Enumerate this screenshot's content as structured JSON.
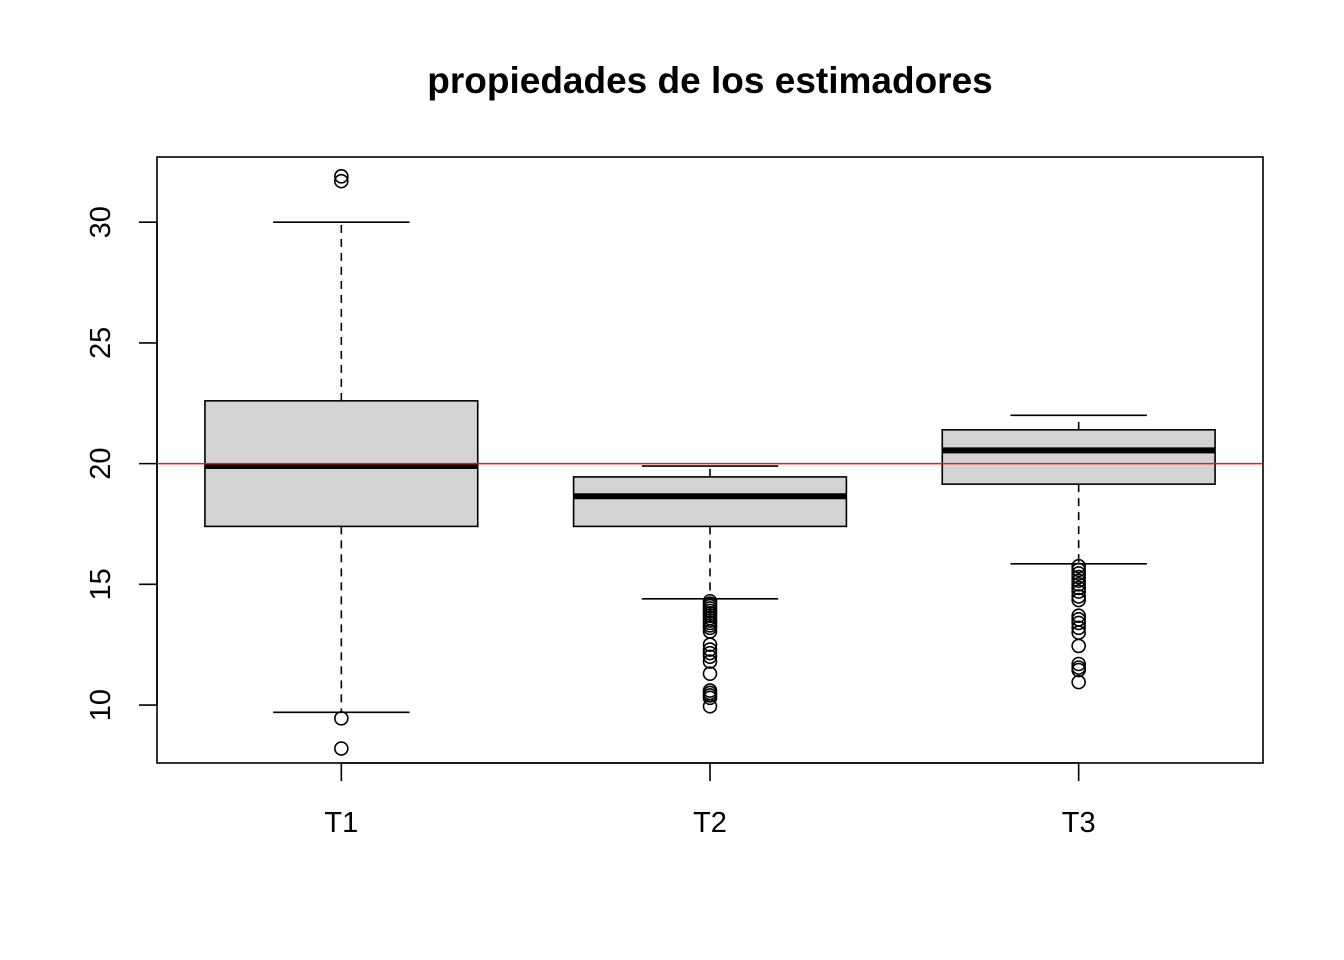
{
  "chart_data": {
    "type": "boxplot",
    "title": "propiedades de los estimadores",
    "xlabel": "",
    "ylabel": "",
    "ylim": [
      7.6,
      32.7
    ],
    "yticks": [
      10,
      15,
      20,
      25,
      30
    ],
    "grid": false,
    "reference_line": {
      "y": 20,
      "color": "#e41a1c"
    },
    "box_fill": "#d3d3d3",
    "categories": [
      "T1",
      "T2",
      "T3"
    ],
    "series": [
      {
        "category": "T1",
        "whisker_low": 9.7,
        "q1": 17.4,
        "median": 19.9,
        "q3": 22.6,
        "whisker_high": 30.0,
        "outliers": [
          31.7,
          31.9,
          9.45,
          8.2
        ]
      },
      {
        "category": "T2",
        "whisker_low": 14.4,
        "q1": 17.4,
        "median": 18.65,
        "q3": 19.45,
        "whisker_high": 19.9,
        "outliers": [
          14.3,
          14.2,
          14.1,
          14.0,
          13.9,
          13.8,
          13.7,
          13.6,
          13.5,
          13.4,
          13.3,
          13.2,
          13.05,
          12.5,
          12.3,
          12.15,
          12.0,
          11.8,
          11.3,
          10.6,
          10.5,
          10.4,
          10.3,
          9.95
        ]
      },
      {
        "category": "T3",
        "whisker_low": 15.85,
        "q1": 19.15,
        "median": 20.55,
        "q3": 21.4,
        "whisker_high": 22.0,
        "outliers": [
          15.75,
          15.6,
          15.45,
          15.3,
          15.15,
          15.0,
          14.85,
          14.7,
          14.5,
          14.35,
          13.7,
          13.55,
          13.4,
          13.2,
          13.0,
          12.45,
          11.7,
          11.55,
          11.45,
          10.95
        ]
      }
    ]
  }
}
